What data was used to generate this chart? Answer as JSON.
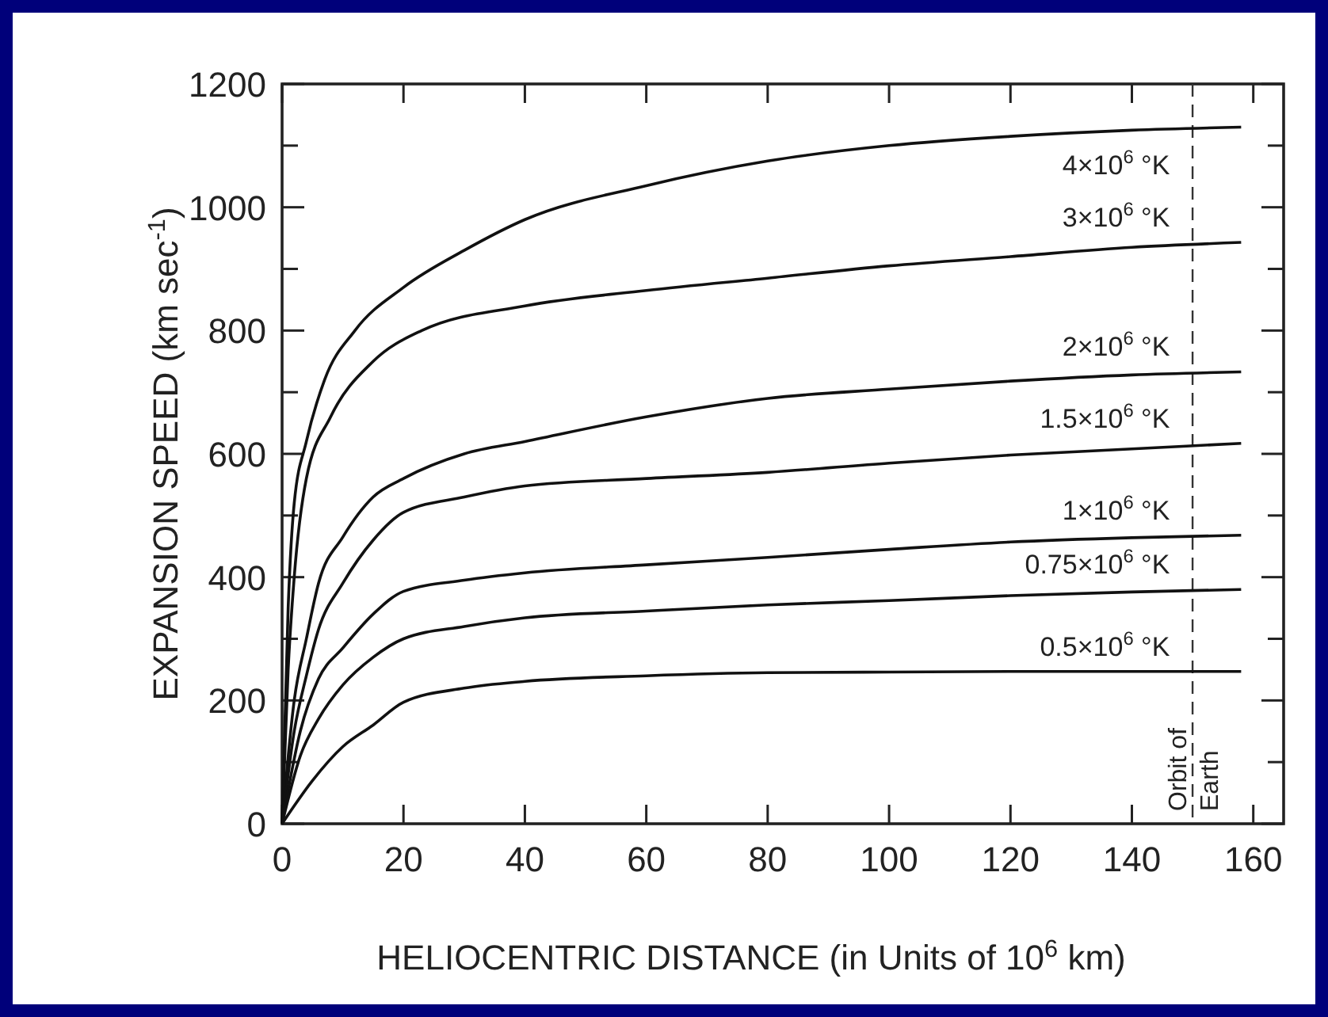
{
  "chart_data": {
    "type": "line",
    "xlabel": "HELIOCENTRIC DISTANCE (in Units of 10$^{6}$ km)",
    "ylabel": "EXPANSION SPEED (km sec$^{-1}$)",
    "xlim": [
      0,
      165
    ],
    "ylim": [
      0,
      1200
    ],
    "xticks": [
      0,
      20,
      40,
      60,
      80,
      100,
      120,
      140,
      160
    ],
    "yticks": [
      0,
      {
        "value": 100,
        "label": null
      },
      200,
      {
        "value": 300,
        "label": null
      },
      400,
      {
        "value": 500,
        "label": null
      },
      600,
      {
        "value": 700,
        "label": null
      },
      800,
      {
        "value": 900,
        "label": null
      },
      1000,
      {
        "value": 1100,
        "label": null
      },
      1200
    ],
    "grid": false,
    "marker": "none",
    "line_style": "solid",
    "ref_lines": [
      {
        "axis": "x",
        "value": 150,
        "label": "Orbit of Earth",
        "line_style": "dashed",
        "color": "#333333"
      }
    ],
    "series": [
      {
        "name": "4×10$^{6}$ °K",
        "color": "#111111",
        "x": [
          0,
          1,
          2,
          4,
          7,
          12,
          20,
          30,
          40,
          60,
          80,
          100,
          120,
          140,
          158
        ],
        "values": [
          0,
          350,
          520,
          620,
          720,
          800,
          870,
          930,
          980,
          1035,
          1075,
          1100,
          1115,
          1125,
          1130
        ]
      },
      {
        "name": "3×10$^{6}$ °K",
        "color": "#111111",
        "x": [
          0,
          1,
          2,
          4,
          8,
          15,
          23,
          40,
          60,
          80,
          100,
          120,
          140,
          158
        ],
        "values": [
          0,
          250,
          400,
          560,
          660,
          750,
          800,
          840,
          865,
          885,
          905,
          920,
          935,
          943
        ]
      },
      {
        "name": "2×10$^{6}$ °K",
        "color": "#111111",
        "x": [
          0,
          2,
          4,
          6,
          10,
          15,
          20,
          30,
          40,
          60,
          80,
          100,
          120,
          140,
          158
        ],
        "values": [
          0,
          200,
          300,
          390,
          465,
          530,
          560,
          600,
          620,
          660,
          690,
          705,
          718,
          728,
          733
        ]
      },
      {
        "name": "1.5×10$^{6}$ °K",
        "color": "#111111",
        "x": [
          0,
          2,
          4,
          6,
          10,
          15,
          20,
          30,
          40,
          60,
          80,
          100,
          120,
          140,
          158
        ],
        "values": [
          0,
          150,
          240,
          315,
          390,
          460,
          505,
          530,
          548,
          560,
          570,
          585,
          598,
          608,
          617
        ]
      },
      {
        "name": "1×10$^{6}$ °K",
        "color": "#111111",
        "x": [
          0,
          3,
          6,
          10,
          15,
          20,
          30,
          40,
          60,
          80,
          100,
          120,
          140,
          158
        ],
        "values": [
          0,
          150,
          235,
          285,
          340,
          377,
          395,
          407,
          420,
          432,
          445,
          457,
          464,
          468
        ]
      },
      {
        "name": "0.75×10$^{6}$ °K",
        "color": "#111111",
        "x": [
          0,
          3,
          6,
          10,
          15,
          20,
          30,
          40,
          60,
          80,
          100,
          120,
          140,
          158
        ],
        "values": [
          0,
          110,
          170,
          225,
          270,
          300,
          320,
          334,
          345,
          355,
          362,
          370,
          376,
          380
        ]
      },
      {
        "name": "0.5×10$^{6}$ °K",
        "color": "#111111",
        "x": [
          0,
          5,
          10,
          15,
          20,
          30,
          40,
          60,
          80,
          100,
          120,
          158
        ],
        "values": [
          0,
          70,
          125,
          160,
          197,
          220,
          231,
          240,
          245,
          246,
          247,
          247
        ]
      }
    ]
  }
}
